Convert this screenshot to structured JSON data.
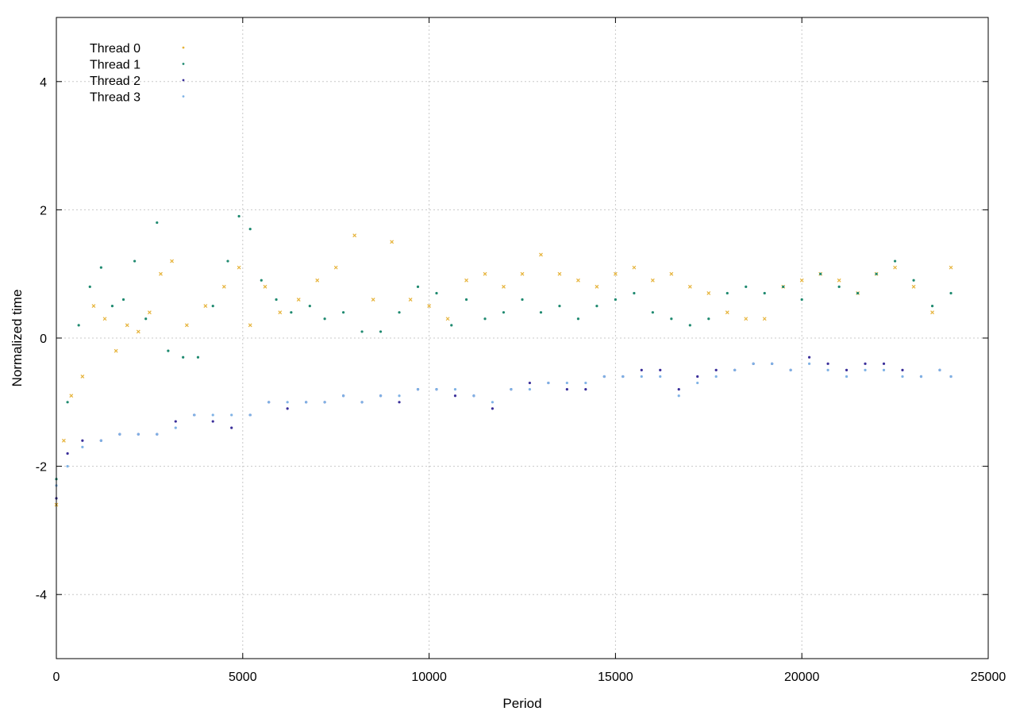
{
  "chart_data": {
    "type": "scatter",
    "xlabel": "Period",
    "ylabel": "Normalized time",
    "xlim": [
      0,
      25000
    ],
    "ylim": [
      -5,
      5
    ],
    "xticks": [
      0,
      5000,
      10000,
      15000,
      20000,
      25000
    ],
    "yticks": [
      -4,
      -2,
      0,
      2,
      4
    ],
    "grid": true,
    "legend_position": "top-left",
    "series": [
      {
        "name": "Thread 0",
        "color": "#e6b33a",
        "marker": "small-x",
        "points": [
          [
            0,
            -2.6
          ],
          [
            200,
            -1.6
          ],
          [
            400,
            -0.9
          ],
          [
            700,
            -0.6
          ],
          [
            1000,
            0.5
          ],
          [
            1300,
            0.3
          ],
          [
            1600,
            -0.2
          ],
          [
            1900,
            0.2
          ],
          [
            2200,
            0.1
          ],
          [
            2500,
            0.4
          ],
          [
            2800,
            1.0
          ],
          [
            3100,
            1.2
          ],
          [
            3500,
            0.2
          ],
          [
            4000,
            0.5
          ],
          [
            4500,
            0.8
          ],
          [
            4900,
            1.1
          ],
          [
            5200,
            0.2
          ],
          [
            5600,
            0.8
          ],
          [
            6000,
            0.4
          ],
          [
            6500,
            0.6
          ],
          [
            7000,
            0.9
          ],
          [
            7500,
            1.1
          ],
          [
            8000,
            1.6
          ],
          [
            8500,
            0.6
          ],
          [
            9000,
            1.5
          ],
          [
            9500,
            0.6
          ],
          [
            10000,
            0.5
          ],
          [
            10500,
            0.3
          ],
          [
            11000,
            0.9
          ],
          [
            11500,
            1.0
          ],
          [
            12000,
            0.8
          ],
          [
            12500,
            1.0
          ],
          [
            13000,
            1.3
          ],
          [
            13500,
            1.0
          ],
          [
            14000,
            0.9
          ],
          [
            14500,
            0.8
          ],
          [
            15000,
            1.0
          ],
          [
            15500,
            1.1
          ],
          [
            16000,
            0.9
          ],
          [
            16500,
            1.0
          ],
          [
            17000,
            0.8
          ],
          [
            17500,
            0.7
          ],
          [
            18000,
            0.4
          ],
          [
            18500,
            0.3
          ],
          [
            19000,
            0.3
          ],
          [
            19500,
            0.8
          ],
          [
            20000,
            0.9
          ],
          [
            20500,
            1.0
          ],
          [
            21000,
            0.9
          ],
          [
            21500,
            0.7
          ],
          [
            22000,
            1.0
          ],
          [
            22500,
            1.1
          ],
          [
            23000,
            0.8
          ],
          [
            23500,
            0.4
          ],
          [
            24000,
            1.1
          ]
        ]
      },
      {
        "name": "Thread 1",
        "color": "#1f8a70",
        "marker": "dot",
        "points": [
          [
            0,
            -2.2
          ],
          [
            300,
            -1.0
          ],
          [
            600,
            0.2
          ],
          [
            900,
            0.8
          ],
          [
            1200,
            1.1
          ],
          [
            1500,
            0.5
          ],
          [
            1800,
            0.6
          ],
          [
            2100,
            1.2
          ],
          [
            2400,
            0.3
          ],
          [
            2700,
            1.8
          ],
          [
            3000,
            -0.2
          ],
          [
            3400,
            -0.3
          ],
          [
            3800,
            -0.3
          ],
          [
            4200,
            0.5
          ],
          [
            4600,
            1.2
          ],
          [
            4900,
            1.9
          ],
          [
            5200,
            1.7
          ],
          [
            5500,
            0.9
          ],
          [
            5900,
            0.6
          ],
          [
            6300,
            0.4
          ],
          [
            6800,
            0.5
          ],
          [
            7200,
            0.3
          ],
          [
            7700,
            0.4
          ],
          [
            8200,
            0.1
          ],
          [
            8700,
            0.1
          ],
          [
            9200,
            0.4
          ],
          [
            9700,
            0.8
          ],
          [
            10200,
            0.7
          ],
          [
            10600,
            0.2
          ],
          [
            11000,
            0.6
          ],
          [
            11500,
            0.3
          ],
          [
            12000,
            0.4
          ],
          [
            12500,
            0.6
          ],
          [
            13000,
            0.4
          ],
          [
            13500,
            0.5
          ],
          [
            14000,
            0.3
          ],
          [
            14500,
            0.5
          ],
          [
            15000,
            0.6
          ],
          [
            15500,
            0.7
          ],
          [
            16000,
            0.4
          ],
          [
            16500,
            0.3
          ],
          [
            17000,
            0.2
          ],
          [
            17500,
            0.3
          ],
          [
            18000,
            0.7
          ],
          [
            18500,
            0.8
          ],
          [
            19000,
            0.7
          ],
          [
            19500,
            0.8
          ],
          [
            20000,
            0.6
          ],
          [
            20500,
            1.0
          ],
          [
            21000,
            0.8
          ],
          [
            21500,
            0.7
          ],
          [
            22000,
            1.0
          ],
          [
            22500,
            1.2
          ],
          [
            23000,
            0.9
          ],
          [
            23500,
            0.5
          ],
          [
            24000,
            0.7
          ]
        ]
      },
      {
        "name": "Thread 2",
        "color": "#3b2f9a",
        "marker": "dot",
        "points": [
          [
            0,
            -2.5
          ],
          [
            300,
            -1.8
          ],
          [
            700,
            -1.6
          ],
          [
            1200,
            -1.6
          ],
          [
            1700,
            -1.5
          ],
          [
            2200,
            -1.5
          ],
          [
            2700,
            -1.5
          ],
          [
            3200,
            -1.3
          ],
          [
            3700,
            -1.2
          ],
          [
            4200,
            -1.3
          ],
          [
            4700,
            -1.4
          ],
          [
            5200,
            -1.2
          ],
          [
            5700,
            -1.0
          ],
          [
            6200,
            -1.1
          ],
          [
            6700,
            -1.0
          ],
          [
            7200,
            -1.0
          ],
          [
            7700,
            -0.9
          ],
          [
            8200,
            -1.0
          ],
          [
            8700,
            -0.9
          ],
          [
            9200,
            -1.0
          ],
          [
            9700,
            -0.8
          ],
          [
            10200,
            -0.8
          ],
          [
            10700,
            -0.9
          ],
          [
            11200,
            -0.9
          ],
          [
            11700,
            -1.1
          ],
          [
            12200,
            -0.8
          ],
          [
            12700,
            -0.7
          ],
          [
            13200,
            -0.7
          ],
          [
            13700,
            -0.8
          ],
          [
            14200,
            -0.8
          ],
          [
            14700,
            -0.6
          ],
          [
            15200,
            -0.6
          ],
          [
            15700,
            -0.5
          ],
          [
            16200,
            -0.5
          ],
          [
            16700,
            -0.8
          ],
          [
            17200,
            -0.6
          ],
          [
            17700,
            -0.5
          ],
          [
            18200,
            -0.5
          ],
          [
            18700,
            -0.4
          ],
          [
            19200,
            -0.4
          ],
          [
            19700,
            -0.5
          ],
          [
            20200,
            -0.3
          ],
          [
            20700,
            -0.4
          ],
          [
            21200,
            -0.5
          ],
          [
            21700,
            -0.4
          ],
          [
            22200,
            -0.4
          ],
          [
            22700,
            -0.5
          ],
          [
            23200,
            -0.6
          ],
          [
            23700,
            -0.5
          ],
          [
            24000,
            -0.6
          ]
        ]
      },
      {
        "name": "Thread 3",
        "color": "#7fb2e5",
        "marker": "dot",
        "points": [
          [
            0,
            -2.3
          ],
          [
            300,
            -2.0
          ],
          [
            700,
            -1.7
          ],
          [
            1200,
            -1.6
          ],
          [
            1700,
            -1.5
          ],
          [
            2200,
            -1.5
          ],
          [
            2700,
            -1.5
          ],
          [
            3200,
            -1.4
          ],
          [
            3700,
            -1.2
          ],
          [
            4200,
            -1.2
          ],
          [
            4700,
            -1.2
          ],
          [
            5200,
            -1.2
          ],
          [
            5700,
            -1.0
          ],
          [
            6200,
            -1.0
          ],
          [
            6700,
            -1.0
          ],
          [
            7200,
            -1.0
          ],
          [
            7700,
            -0.9
          ],
          [
            8200,
            -1.0
          ],
          [
            8700,
            -0.9
          ],
          [
            9200,
            -0.9
          ],
          [
            9700,
            -0.8
          ],
          [
            10200,
            -0.8
          ],
          [
            10700,
            -0.8
          ],
          [
            11200,
            -0.9
          ],
          [
            11700,
            -1.0
          ],
          [
            12200,
            -0.8
          ],
          [
            12700,
            -0.8
          ],
          [
            13200,
            -0.7
          ],
          [
            13700,
            -0.7
          ],
          [
            14200,
            -0.7
          ],
          [
            14700,
            -0.6
          ],
          [
            15200,
            -0.6
          ],
          [
            15700,
            -0.6
          ],
          [
            16200,
            -0.6
          ],
          [
            16700,
            -0.9
          ],
          [
            17200,
            -0.7
          ],
          [
            17700,
            -0.6
          ],
          [
            18200,
            -0.5
          ],
          [
            18700,
            -0.4
          ],
          [
            19200,
            -0.4
          ],
          [
            19700,
            -0.5
          ],
          [
            20200,
            -0.4
          ],
          [
            20700,
            -0.5
          ],
          [
            21200,
            -0.6
          ],
          [
            21700,
            -0.5
          ],
          [
            22200,
            -0.5
          ],
          [
            22700,
            -0.6
          ],
          [
            23200,
            -0.6
          ],
          [
            23700,
            -0.5
          ],
          [
            24000,
            -0.6
          ]
        ]
      }
    ]
  }
}
